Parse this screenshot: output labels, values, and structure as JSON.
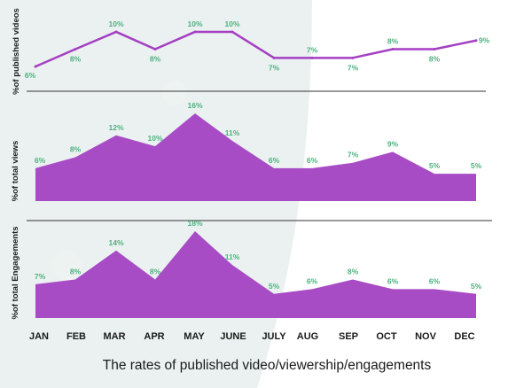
{
  "colors": {
    "line": "#a43fc3",
    "area": "#a84cc6",
    "value_label": "#4bb27f",
    "divider": "#333333",
    "backdrop": "#dbe6e4"
  },
  "caption": "The rates of published video/viewership/engagements",
  "chart_data": [
    {
      "type": "line",
      "ylabel": "%of published videos",
      "categories": [
        "JAN",
        "FEB",
        "MAR",
        "APR",
        "MAY",
        "JUNE",
        "JULY",
        "AUG",
        "SEP",
        "OCT",
        "NOV",
        "DEC"
      ],
      "values": [
        6,
        8,
        10,
        8,
        10,
        10,
        7,
        7,
        7,
        8,
        8,
        9
      ],
      "labels": [
        "6%",
        "8%",
        "10%",
        "8%",
        "10%",
        "10%",
        "7%",
        "7%",
        "7%",
        "8%",
        "8%",
        "9%"
      ],
      "ylim": [
        5.5,
        10.3
      ],
      "grid": false
    },
    {
      "type": "area",
      "ylabel": "%of total views",
      "categories": [
        "JAN",
        "FEB",
        "MAR",
        "APR",
        "MAY",
        "JUNE",
        "JULY",
        "AUG",
        "SEP",
        "OCT",
        "NOV",
        "DEC"
      ],
      "values": [
        6,
        8,
        12,
        10,
        16,
        11,
        6,
        6,
        7,
        9,
        5,
        5
      ],
      "labels": [
        "6%",
        "8%",
        "12%",
        "10%",
        "16%",
        "11%",
        "6%",
        "6%",
        "7%",
        "9%",
        "5%",
        "5%"
      ],
      "ylim": [
        0,
        16
      ],
      "grid": false
    },
    {
      "type": "area",
      "ylabel": "%of total Engagements",
      "categories": [
        "JAN",
        "FEB",
        "MAR",
        "APR",
        "MAY",
        "JUNE",
        "JULY",
        "AUG",
        "SEP",
        "OCT",
        "NOV",
        "DEC"
      ],
      "values": [
        7,
        8,
        14,
        8,
        18,
        11,
        5,
        6,
        8,
        6,
        6,
        5
      ],
      "labels": [
        "7%",
        "8%",
        "14%",
        "8%",
        "18%",
        "11%",
        "5%",
        "6%",
        "8%",
        "6%",
        "6%",
        "5%"
      ],
      "ylim": [
        0,
        18
      ],
      "grid": false
    }
  ]
}
